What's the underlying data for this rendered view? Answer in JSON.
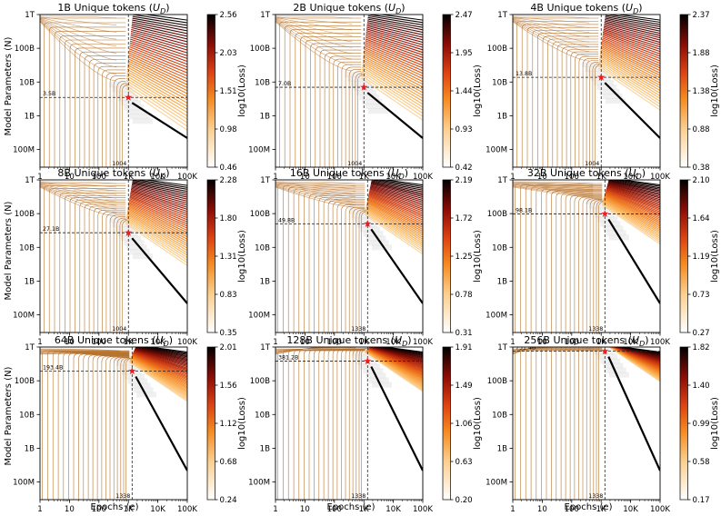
{
  "figure": {
    "ylabel": "Model Parameters (N)",
    "xlabel": "Epochs (e)",
    "cbar_label": "log10(Loss)",
    "x_ticks": [
      "1",
      "10",
      "100",
      "1K",
      "10K",
      "100K"
    ],
    "y_ticks": [
      "100M",
      "1B",
      "10B",
      "100B",
      "1T"
    ],
    "title_prefix": "Unique tokens",
    "title_symbol": "U",
    "title_subscript": "D"
  },
  "chart_data": [
    {
      "type": "heatmap",
      "title_value": "1B",
      "title": "1B Unique tokens (U_D)",
      "xscale": "log",
      "yscale": "log",
      "xlim": [
        1,
        100000
      ],
      "ylim": [
        30000000,
        1000000000000
      ],
      "optimum": {
        "epochs": 1004,
        "params": 3500000000
      },
      "x_annotation": "1004",
      "y_annotation": "3.5B",
      "colorbar": {
        "min": 0.46,
        "max": 2.56,
        "ticks": [
          "2.56",
          "2.03",
          "1.51",
          "0.98",
          "0.46"
        ]
      }
    },
    {
      "type": "heatmap",
      "title_value": "2B",
      "title": "2B Unique tokens (U_D)",
      "xscale": "log",
      "yscale": "log",
      "xlim": [
        1,
        100000
      ],
      "ylim": [
        30000000,
        1000000000000
      ],
      "optimum": {
        "epochs": 1004,
        "params": 7000000000
      },
      "x_annotation": "1004",
      "y_annotation": "7.0B",
      "colorbar": {
        "min": 0.42,
        "max": 2.47,
        "ticks": [
          "2.47",
          "1.95",
          "1.44",
          "0.93",
          "0.42"
        ]
      }
    },
    {
      "type": "heatmap",
      "title_value": "4B",
      "title": "4B Unique tokens (U_D)",
      "xscale": "log",
      "yscale": "log",
      "xlim": [
        1,
        100000
      ],
      "ylim": [
        30000000,
        1000000000000
      ],
      "optimum": {
        "epochs": 1004,
        "params": 13800000000
      },
      "x_annotation": "1004",
      "y_annotation": "13.8B",
      "colorbar": {
        "min": 0.38,
        "max": 2.37,
        "ticks": [
          "2.37",
          "1.88",
          "1.38",
          "0.88",
          "0.38"
        ]
      }
    },
    {
      "type": "heatmap",
      "title_value": "8B",
      "title": "8B Unique tokens (U_D)",
      "xscale": "log",
      "yscale": "log",
      "xlim": [
        1,
        100000
      ],
      "ylim": [
        30000000,
        1000000000000
      ],
      "optimum": {
        "epochs": 1004,
        "params": 27100000000
      },
      "x_annotation": "1004",
      "y_annotation": "27.1B",
      "colorbar": {
        "min": 0.35,
        "max": 2.28,
        "ticks": [
          "2.28",
          "1.80",
          "1.31",
          "0.83",
          "0.35"
        ]
      }
    },
    {
      "type": "heatmap",
      "title_value": "16B",
      "title": "16B Unique tokens (U_D)",
      "xscale": "log",
      "yscale": "log",
      "xlim": [
        1,
        100000
      ],
      "ylim": [
        30000000,
        1000000000000
      ],
      "optimum": {
        "epochs": 1338,
        "params": 49800000000
      },
      "x_annotation": "1338",
      "y_annotation": "49.8B",
      "colorbar": {
        "min": 0.31,
        "max": 2.19,
        "ticks": [
          "2.19",
          "1.72",
          "1.25",
          "0.78",
          "0.31"
        ]
      }
    },
    {
      "type": "heatmap",
      "title_value": "32B",
      "title": "32B Unique tokens (U_D)",
      "xscale": "log",
      "yscale": "log",
      "xlim": [
        1,
        100000
      ],
      "ylim": [
        30000000,
        1000000000000
      ],
      "optimum": {
        "epochs": 1338,
        "params": 98100000000
      },
      "x_annotation": "1338",
      "y_annotation": "98.1B",
      "colorbar": {
        "min": 0.27,
        "max": 2.1,
        "ticks": [
          "2.10",
          "1.64",
          "1.19",
          "0.73",
          "0.27"
        ]
      }
    },
    {
      "type": "heatmap",
      "title_value": "64B",
      "title": "64B Unique tokens (U_D)",
      "xscale": "log",
      "yscale": "log",
      "xlim": [
        1,
        100000
      ],
      "ylim": [
        30000000,
        1000000000000
      ],
      "optimum": {
        "epochs": 1338,
        "params": 193400000000
      },
      "x_annotation": "1338",
      "y_annotation": "193.4B",
      "colorbar": {
        "min": 0.24,
        "max": 2.01,
        "ticks": [
          "2.01",
          "1.56",
          "1.12",
          "0.68",
          "0.24"
        ]
      }
    },
    {
      "type": "heatmap",
      "title_value": "128B",
      "title": "128B Unique tokens (U_D)",
      "xscale": "log",
      "yscale": "log",
      "xlim": [
        1,
        100000
      ],
      "ylim": [
        30000000,
        1000000000000
      ],
      "optimum": {
        "epochs": 1338,
        "params": 381200000000
      },
      "x_annotation": "1338",
      "y_annotation": "381.2B",
      "colorbar": {
        "min": 0.2,
        "max": 1.91,
        "ticks": [
          "1.91",
          "1.49",
          "1.06",
          "0.63",
          "0.20"
        ]
      }
    },
    {
      "type": "heatmap",
      "title_value": "256B",
      "title": "256B Unique tokens (U_D)",
      "xscale": "log",
      "yscale": "log",
      "xlim": [
        1,
        100000
      ],
      "ylim": [
        30000000,
        1000000000000
      ],
      "optimum": {
        "epochs": 1338,
        "params": 751400000000
      },
      "x_annotation": "1338",
      "y_annotation": "751.4B",
      "colorbar": {
        "min": 0.17,
        "max": 1.82,
        "ticks": [
          "1.82",
          "1.40",
          "0.99",
          "0.58",
          "0.17"
        ]
      }
    }
  ]
}
